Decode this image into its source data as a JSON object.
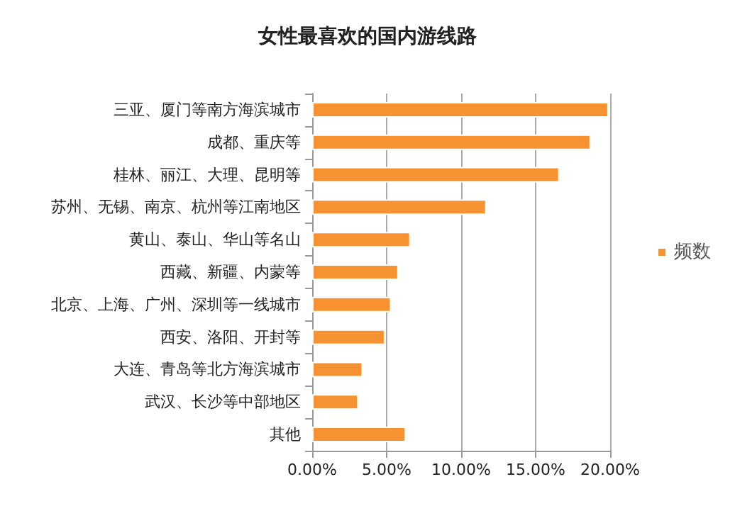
{
  "chart_data": {
    "type": "bar",
    "orientation": "horizontal",
    "title": "女性最喜欢的国内游线路",
    "categories": [
      "三亚、厦门等南方海滨城市",
      "成都、重庆等",
      "桂林、丽江、大理、昆明等",
      "苏州、无锡、南京、杭州等江南地区",
      "黄山、泰山、华山等名山",
      "西藏、新疆、内蒙等",
      "北京、上海、广州、深圳等一线城市",
      "西安、洛阳、开封等",
      "大连、青岛等北方海滨城市",
      "武汉、长沙等中部地区",
      "其他"
    ],
    "series": [
      {
        "name": "频数",
        "color": "#f79232",
        "values": [
          19.9,
          18.7,
          16.6,
          11.7,
          6.6,
          5.8,
          5.3,
          4.9,
          3.4,
          3.1,
          6.3
        ]
      }
    ],
    "xlim": [
      0,
      20
    ],
    "xticks": [
      {
        "value": 0,
        "label": "0.00%"
      },
      {
        "value": 5,
        "label": "5.00%"
      },
      {
        "value": 10,
        "label": "10.00%"
      },
      {
        "value": 15,
        "label": "15.00%"
      },
      {
        "value": 20,
        "label": "20.00%"
      }
    ],
    "grid": "x",
    "legend": "right"
  }
}
